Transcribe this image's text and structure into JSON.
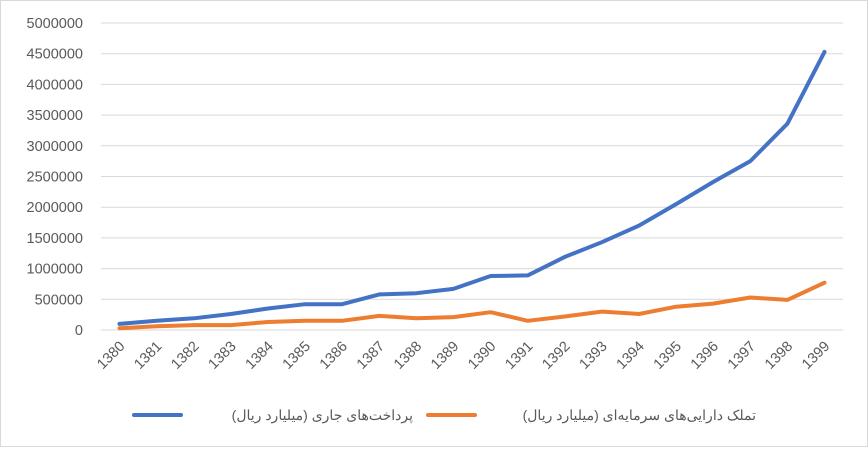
{
  "chart_data": {
    "type": "line",
    "title": "",
    "xlabel": "",
    "ylabel": "",
    "ylim": [
      0,
      5000000
    ],
    "yticks": [
      "0",
      "500000",
      "1000000",
      "1500000",
      "2000000",
      "2500000",
      "3000000",
      "3500000",
      "4000000",
      "4500000",
      "5000000"
    ],
    "grid": true,
    "legend_position": "bottom",
    "categories": [
      "1380",
      "1381",
      "1382",
      "1383",
      "1384",
      "1385",
      "1386",
      "1387",
      "1388",
      "1389",
      "1390",
      "1391",
      "1392",
      "1393",
      "1394",
      "1395",
      "1396",
      "1397",
      "1398",
      "1399"
    ],
    "series": [
      {
        "name": "پرداخت‌های جاری (میلیارد ریال)",
        "color": "#4472C4",
        "values": [
          100000,
          150000,
          190000,
          260000,
          350000,
          420000,
          420000,
          580000,
          600000,
          670000,
          880000,
          890000,
          1190000,
          1430000,
          1700000,
          2050000,
          2410000,
          2750000,
          3360000,
          4530000
        ]
      },
      {
        "name": "تملک دارایی‌های سرمایه‌ای (میلیارد ریال)",
        "color": "#ED7D31",
        "values": [
          30000,
          60000,
          80000,
          80000,
          130000,
          150000,
          150000,
          230000,
          190000,
          210000,
          290000,
          150000,
          220000,
          300000,
          260000,
          380000,
          430000,
          530000,
          490000,
          770000
        ]
      }
    ]
  }
}
